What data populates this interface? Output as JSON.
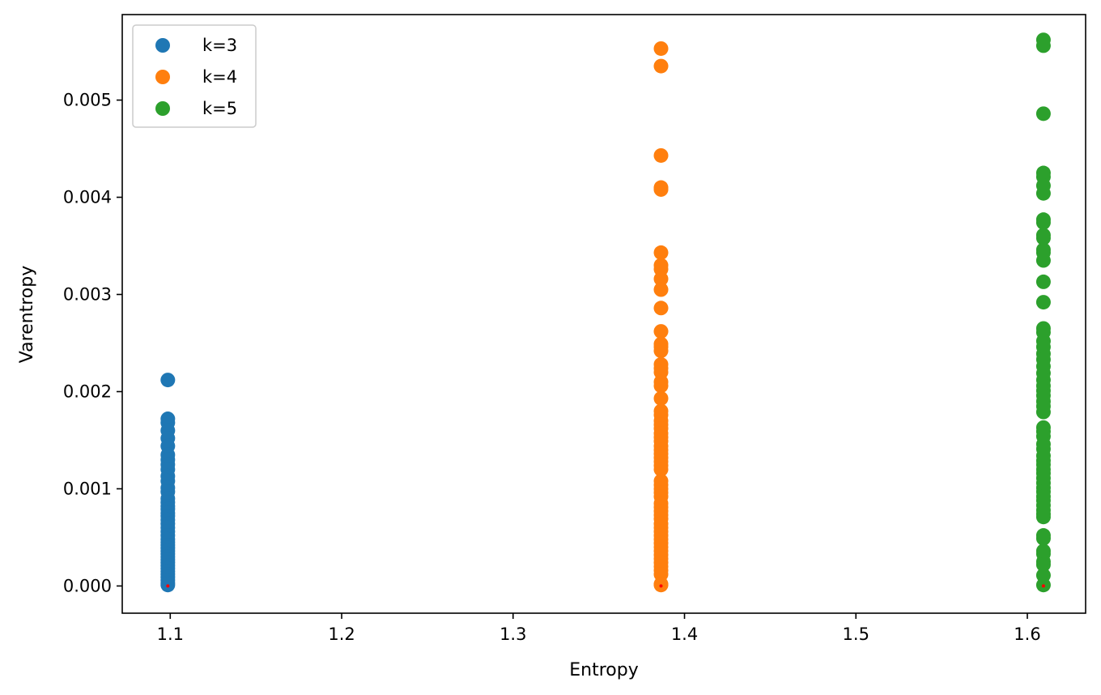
{
  "chart_data": {
    "type": "scatter",
    "xlabel": "Entropy",
    "ylabel": "Varentropy",
    "xlim": [
      1.072,
      1.634
    ],
    "ylim": [
      -0.00028,
      0.00588
    ],
    "xticks": [
      1.1,
      1.2,
      1.3,
      1.4,
      1.5,
      1.6
    ],
    "xtick_labels": [
      "1.1",
      "1.2",
      "1.3",
      "1.4",
      "1.5",
      "1.6"
    ],
    "yticks": [
      0,
      0.001,
      0.002,
      0.003,
      0.004,
      0.005
    ],
    "ytick_labels": [
      "0.000",
      "0.001",
      "0.002",
      "0.003",
      "0.004",
      "0.005"
    ],
    "grid": false,
    "legend_position": "upper-left",
    "legend": [
      "k=3",
      "k=4",
      "k=5"
    ],
    "series": [
      {
        "name": "k=3",
        "color": "#1f77b4",
        "x": 1.0986,
        "y": [
          0.00212,
          0.00172,
          0.00168,
          0.0016,
          0.00152,
          0.00144,
          0.00135,
          0.0013,
          0.00125,
          0.0012,
          0.00113,
          0.00108,
          0.00101,
          0.00097,
          0.0009,
          0.00086,
          0.00082,
          0.00079,
          0.00075,
          0.00072,
          0.00068,
          0.00064,
          0.0006,
          0.00056,
          0.00052,
          0.00048,
          0.00045,
          0.00042,
          0.00039,
          0.00036,
          0.00033,
          0.0003,
          0.00027,
          0.00024,
          0.00021,
          0.00018,
          0.00015,
          0.00012,
          9e-05,
          6e-05,
          3e-05,
          1e-05
        ]
      },
      {
        "name": "k=4",
        "color": "#ff7f0e",
        "x": 1.3863,
        "y": [
          0.00553,
          0.00535,
          0.00443,
          0.0041,
          0.00408,
          0.00343,
          0.0033,
          0.00326,
          0.00316,
          0.00305,
          0.00286,
          0.00262,
          0.00249,
          0.00246,
          0.00242,
          0.00228,
          0.00224,
          0.0022,
          0.0021,
          0.00206,
          0.00193,
          0.0018,
          0.00176,
          0.0017,
          0.00166,
          0.00162,
          0.00157,
          0.00153,
          0.00149,
          0.00144,
          0.0014,
          0.00136,
          0.00132,
          0.00128,
          0.00124,
          0.0012,
          0.00108,
          0.00104,
          0.001,
          0.00096,
          0.00092,
          0.00085,
          0.00081,
          0.00077,
          0.00073,
          0.00069,
          0.00064,
          0.0006,
          0.00056,
          0.00052,
          0.00048,
          0.00044,
          0.0004,
          0.00036,
          0.00032,
          0.00028,
          0.00024,
          0.0002,
          0.00016,
          0.00012,
          2e-05,
          1e-05
        ]
      },
      {
        "name": "k=5",
        "color": "#2ca02c",
        "x": 1.6094,
        "y": [
          0.00562,
          0.00556,
          0.00486,
          0.00425,
          0.00421,
          0.00412,
          0.00404,
          0.00377,
          0.00374,
          0.00361,
          0.00358,
          0.00346,
          0.00343,
          0.00335,
          0.00313,
          0.00292,
          0.00265,
          0.00261,
          0.00252,
          0.00246,
          0.00239,
          0.00233,
          0.00226,
          0.00219,
          0.00212,
          0.00206,
          0.00201,
          0.00196,
          0.0019,
          0.00185,
          0.00179,
          0.00163,
          0.00159,
          0.00154,
          0.00146,
          0.00141,
          0.00134,
          0.00129,
          0.00125,
          0.0012,
          0.00116,
          0.00111,
          0.00106,
          0.00101,
          0.00097,
          0.00092,
          0.00088,
          0.00083,
          0.00078,
          0.00074,
          0.00071,
          0.00052,
          0.00049,
          0.00036,
          0.00033,
          0.00025,
          0.00022,
          0.00011,
          1e-05
        ]
      }
    ],
    "markers": [
      {
        "x": 1.0986,
        "y": 0,
        "color": "#ff0000"
      },
      {
        "x": 1.3863,
        "y": 0,
        "color": "#ff0000"
      },
      {
        "x": 1.6094,
        "y": 0,
        "color": "#ff0000"
      }
    ]
  }
}
